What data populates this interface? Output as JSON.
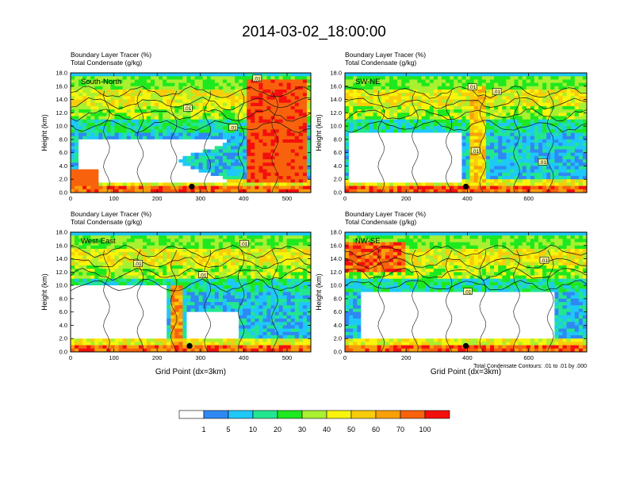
{
  "title": "2014-03-02_18:00:00",
  "chart_data": [
    {
      "type": "heatmap",
      "subtitle_lines": [
        "Boundary Layer Tracer    (%)",
        "Total Condensate    (g/kg)"
      ],
      "label": "South-North",
      "ylabel": "Height (km)",
      "xlabel": "",
      "xlim": [
        0,
        555
      ],
      "ylim": [
        0,
        18
      ],
      "xticks": [
        0,
        100,
        200,
        300,
        400,
        500
      ],
      "yticks": [
        "0.0",
        "2.0",
        "4.0",
        "6.0",
        "8.0",
        "10.0",
        "12.0",
        "14.0",
        "16.0",
        "18.0"
      ],
      "contour_labels": [
        {
          "text": ".01",
          "x": 430,
          "y": 17.2
        },
        {
          "text": ".01",
          "x": 270,
          "y": 12.7
        },
        {
          "text": ".01",
          "x": 375,
          "y": 9.8
        }
      ],
      "marker": {
        "x": 280,
        "y": 0.9
      }
    },
    {
      "type": "heatmap",
      "subtitle_lines": [
        "Boundary Layer Tracer    (%)",
        "Total Condensate    (g/kg)"
      ],
      "label": "SW-NE",
      "ylabel": "Height (km)",
      "xlabel": "",
      "xlim": [
        0,
        790
      ],
      "ylim": [
        0,
        18
      ],
      "xticks": [
        0,
        200,
        400,
        600
      ],
      "yticks": [
        "0.0",
        "2.0",
        "4.0",
        "6.0",
        "8.0",
        "10.0",
        "12.0",
        "14.0",
        "16.0",
        "18.0"
      ],
      "contour_labels": [
        {
          "text": ".01",
          "x": 415,
          "y": 15.9
        },
        {
          "text": ".01",
          "x": 495,
          "y": 15.2
        },
        {
          "text": ".01",
          "x": 425,
          "y": 6.3
        },
        {
          "text": ".01",
          "x": 645,
          "y": 4.6
        }
      ],
      "marker": {
        "x": 395,
        "y": 0.9
      }
    },
    {
      "type": "heatmap",
      "subtitle_lines": [
        "Boundary Layer Tracer    (%)",
        "Total Condensate    (g/kg)"
      ],
      "label": "West-East",
      "ylabel": "Height (km)",
      "xlabel": "Grid Point (dx=3km)",
      "xlim": [
        0,
        555
      ],
      "ylim": [
        0,
        18
      ],
      "xticks": [
        0,
        100,
        200,
        300,
        400,
        500
      ],
      "yticks": [
        "0.0",
        "2.0",
        "4.0",
        "6.0",
        "8.0",
        "10.0",
        "12.0",
        "14.0",
        "16.0",
        "18.0"
      ],
      "contour_labels": [
        {
          "text": ".01",
          "x": 400,
          "y": 16.3
        },
        {
          "text": ".01",
          "x": 155,
          "y": 13.3
        },
        {
          "text": ".01",
          "x": 305,
          "y": 11.6
        }
      ],
      "marker": {
        "x": 275,
        "y": 0.9
      }
    },
    {
      "type": "heatmap",
      "subtitle_lines": [
        "Boundary Layer Tracer    (%)",
        "Total Condensate    (g/kg)"
      ],
      "label": "NW-SE",
      "ylabel": "Height (km)",
      "xlabel": "Grid Point (dx=3km)",
      "xlim": [
        0,
        790
      ],
      "ylim": [
        0,
        18
      ],
      "xticks": [
        0,
        200,
        400,
        600
      ],
      "yticks": [
        "0.0",
        "2.0",
        "4.0",
        "6.0",
        "8.0",
        "10.0",
        "12.0",
        "14.0",
        "16.0",
        "18.0"
      ],
      "contour_labels": [
        {
          "text": ".01",
          "x": 650,
          "y": 13.8
        },
        {
          "text": ".01",
          "x": 400,
          "y": 9.1
        }
      ],
      "marker": {
        "x": 395,
        "y": 0.9
      },
      "footnote": "Total Condensate Contours: .01 to .01 by .000"
    }
  ],
  "colorbar": {
    "labels": [
      "1",
      "5",
      "10",
      "20",
      "30",
      "40",
      "50",
      "60",
      "70",
      "100"
    ],
    "colors": [
      "#ffffff",
      "#2f88f4",
      "#1ec8f8",
      "#22e690",
      "#1ee81e",
      "#a8f030",
      "#f8f40a",
      "#f8cc0a",
      "#f8a00a",
      "#f8620c",
      "#f40f0f"
    ]
  }
}
